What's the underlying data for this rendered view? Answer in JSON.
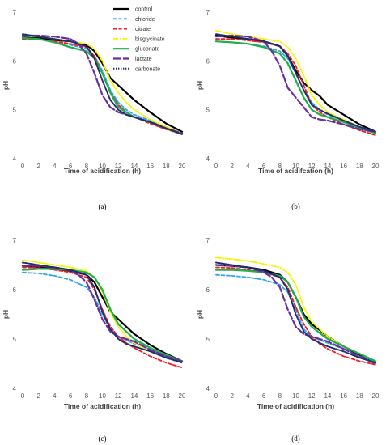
{
  "series_styles": {
    "control": {
      "color": "#000000",
      "dash": "",
      "width": 2.2
    },
    "chloride": {
      "color": "#2fa6e8",
      "dash": "4,2.5",
      "width": 1.8
    },
    "citrate": {
      "color": "#ee1c24",
      "dash": "4,2.5",
      "width": 1.8
    },
    "bisglycinate": {
      "color": "#f5f500",
      "dash": "6,2,1.5,2",
      "width": 1.8
    },
    "gluconate": {
      "color": "#1fae4a",
      "dash": "",
      "width": 2.2
    },
    "lactate": {
      "color": "#6b2fa0",
      "dash": "9,3",
      "width": 2.2
    },
    "carbonate": {
      "color": "#1f2f6e",
      "dash": "1.4,1.6",
      "width": 2.0
    }
  },
  "chart_data": [
    {
      "type": "line",
      "panel_label": "(a)",
      "xlabel": "Time of acidification (h)",
      "ylabel": "pH",
      "xlim": [
        0,
        20
      ],
      "ylim": [
        4,
        7
      ],
      "xticks": [
        0,
        2,
        4,
        6,
        8,
        10,
        12,
        14,
        16,
        18,
        20
      ],
      "yticks": [
        4,
        5,
        6,
        7
      ],
      "legend": [
        "control",
        "chloride",
        "citrate",
        "bisglycinate",
        "gluconate",
        "lactate",
        "carbonate"
      ],
      "series": [
        {
          "name": "control",
          "x": [
            0,
            2,
            4,
            6,
            8,
            9,
            10,
            11,
            12,
            13,
            14,
            16,
            18,
            20
          ],
          "y": [
            6.48,
            6.47,
            6.43,
            6.4,
            6.33,
            6.2,
            5.95,
            5.65,
            5.5,
            5.35,
            5.2,
            4.95,
            4.72,
            4.55
          ]
        },
        {
          "name": "chloride",
          "x": [
            0,
            2,
            4,
            6,
            8,
            9,
            10,
            11,
            12,
            13,
            14,
            16,
            18,
            20
          ],
          "y": [
            6.45,
            6.44,
            6.4,
            6.33,
            6.25,
            6.1,
            5.8,
            5.4,
            5.15,
            5.0,
            4.9,
            4.78,
            4.65,
            4.52
          ]
        },
        {
          "name": "citrate",
          "x": [
            0,
            2,
            4,
            6,
            8,
            9,
            10,
            11,
            12,
            13,
            14,
            16,
            18,
            20
          ],
          "y": [
            6.45,
            6.44,
            6.4,
            6.35,
            6.28,
            6.1,
            5.75,
            5.35,
            5.1,
            4.95,
            4.85,
            4.72,
            4.6,
            4.5
          ]
        },
        {
          "name": "bisglycinate",
          "x": [
            0,
            2,
            4,
            6,
            8,
            9,
            10,
            11,
            12,
            13,
            14,
            16,
            18,
            20
          ],
          "y": [
            6.55,
            6.5,
            6.45,
            6.4,
            6.35,
            6.25,
            6.0,
            5.6,
            5.35,
            5.15,
            5.0,
            4.8,
            4.65,
            4.52
          ]
        },
        {
          "name": "gluconate",
          "x": [
            0,
            2,
            4,
            6,
            8,
            9,
            10,
            11,
            12,
            13,
            14,
            16,
            18,
            20
          ],
          "y": [
            6.47,
            6.45,
            6.38,
            6.28,
            6.2,
            6.05,
            5.75,
            5.35,
            5.05,
            4.95,
            4.85,
            4.75,
            4.62,
            4.5
          ]
        },
        {
          "name": "lactate",
          "x": [
            0,
            2,
            4,
            6,
            7,
            8,
            9,
            10,
            11,
            12,
            13,
            14,
            16,
            18,
            20
          ],
          "y": [
            6.52,
            6.52,
            6.5,
            6.45,
            6.35,
            6.15,
            5.75,
            5.3,
            5.05,
            4.95,
            4.9,
            4.85,
            4.75,
            4.62,
            4.52
          ]
        },
        {
          "name": "carbonate",
          "x": [
            0,
            2,
            4,
            6,
            8,
            9,
            10,
            11,
            12,
            13,
            14,
            16,
            18,
            20
          ],
          "y": [
            6.55,
            6.5,
            6.45,
            6.4,
            6.3,
            6.05,
            5.6,
            5.2,
            5.0,
            4.9,
            4.85,
            4.75,
            4.62,
            4.5
          ]
        }
      ]
    },
    {
      "type": "line",
      "panel_label": "(b)",
      "xlabel": "Time of acidifcation (h)",
      "ylabel": "pH",
      "xlim": [
        0,
        20
      ],
      "ylim": [
        4,
        7
      ],
      "xticks": [
        0,
        2,
        4,
        6,
        8,
        10,
        12,
        14,
        16,
        18,
        20
      ],
      "yticks": [
        4,
        5,
        6,
        7
      ],
      "series": [
        {
          "name": "control",
          "x": [
            0,
            2,
            4,
            6,
            8,
            9,
            10,
            11,
            12,
            13,
            14,
            16,
            18,
            20
          ],
          "y": [
            6.52,
            6.48,
            6.45,
            6.4,
            6.3,
            6.1,
            5.8,
            5.55,
            5.4,
            5.28,
            5.1,
            4.9,
            4.7,
            4.55
          ]
        },
        {
          "name": "chloride",
          "x": [
            0,
            2,
            4,
            6,
            8,
            9,
            10,
            11,
            12,
            13,
            14,
            16,
            18,
            20
          ],
          "y": [
            6.4,
            6.38,
            6.35,
            6.3,
            6.2,
            6.05,
            5.75,
            5.4,
            5.15,
            5.0,
            4.9,
            4.78,
            4.65,
            4.55
          ]
        },
        {
          "name": "citrate",
          "x": [
            0,
            2,
            4,
            6,
            8,
            9,
            10,
            11,
            12,
            13,
            14,
            16,
            18,
            20
          ],
          "y": [
            6.45,
            6.45,
            6.42,
            6.38,
            6.3,
            6.15,
            5.9,
            5.5,
            5.1,
            4.95,
            4.85,
            4.7,
            4.58,
            4.48
          ]
        },
        {
          "name": "bisglycinate",
          "x": [
            0,
            2,
            4,
            6,
            8,
            9,
            10,
            11,
            12,
            13,
            14,
            16,
            18,
            20
          ],
          "y": [
            6.62,
            6.55,
            6.5,
            6.45,
            6.4,
            6.28,
            6.05,
            5.7,
            5.3,
            5.1,
            4.95,
            4.8,
            4.65,
            4.55
          ]
        },
        {
          "name": "gluconate",
          "x": [
            0,
            2,
            4,
            6,
            8,
            9,
            10,
            11,
            12,
            13,
            14,
            16,
            18,
            20
          ],
          "y": [
            6.4,
            6.38,
            6.35,
            6.28,
            6.15,
            5.95,
            5.6,
            5.25,
            5.0,
            4.9,
            4.85,
            4.75,
            4.62,
            4.52
          ]
        },
        {
          "name": "lactate",
          "x": [
            0,
            2,
            4,
            6,
            7,
            8,
            9,
            10,
            11,
            12,
            13,
            14,
            16,
            18,
            20
          ],
          "y": [
            6.5,
            6.52,
            6.5,
            6.4,
            6.2,
            5.9,
            5.45,
            5.25,
            5.05,
            4.85,
            4.8,
            4.78,
            4.7,
            4.6,
            4.55
          ]
        },
        {
          "name": "carbonate",
          "x": [
            0,
            2,
            4,
            6,
            8,
            9,
            10,
            11,
            12,
            13,
            14,
            16,
            18,
            20
          ],
          "y": [
            6.55,
            6.5,
            6.45,
            6.4,
            6.3,
            6.1,
            5.75,
            5.4,
            5.1,
            5.0,
            4.92,
            4.78,
            4.65,
            4.55
          ]
        }
      ]
    },
    {
      "type": "line",
      "panel_label": "(c)",
      "xlabel": "Time of acidification (h)",
      "ylabel": "pH",
      "xlim": [
        0,
        20
      ],
      "ylim": [
        4,
        7
      ],
      "xticks": [
        0,
        2,
        4,
        6,
        8,
        10,
        12,
        14,
        16,
        18,
        20
      ],
      "yticks": [
        4,
        5,
        6,
        7
      ],
      "series": [
        {
          "name": "control",
          "x": [
            0,
            2,
            4,
            6,
            8,
            9,
            10,
            11,
            12,
            13,
            14,
            16,
            18,
            20
          ],
          "y": [
            6.48,
            6.46,
            6.42,
            6.38,
            6.3,
            6.15,
            5.85,
            5.55,
            5.4,
            5.25,
            5.1,
            4.88,
            4.7,
            4.55
          ]
        },
        {
          "name": "chloride",
          "x": [
            0,
            2,
            4,
            6,
            8,
            9,
            10,
            11,
            12,
            13,
            14,
            16,
            18,
            20
          ],
          "y": [
            6.35,
            6.33,
            6.28,
            6.2,
            6.05,
            5.85,
            5.5,
            5.2,
            5.05,
            4.98,
            4.9,
            4.78,
            4.65,
            4.52
          ]
        },
        {
          "name": "citrate",
          "x": [
            0,
            2,
            4,
            6,
            8,
            9,
            10,
            11,
            12,
            13,
            14,
            16,
            18,
            20
          ],
          "y": [
            6.45,
            6.44,
            6.4,
            6.35,
            6.25,
            6.0,
            5.6,
            5.25,
            5.05,
            4.92,
            4.82,
            4.65,
            4.52,
            4.42
          ]
        },
        {
          "name": "bisglycinate",
          "x": [
            0,
            2,
            4,
            6,
            8,
            9,
            10,
            11,
            12,
            13,
            14,
            16,
            18,
            20
          ],
          "y": [
            6.6,
            6.55,
            6.5,
            6.45,
            6.38,
            6.25,
            5.95,
            5.55,
            5.25,
            5.05,
            4.92,
            4.75,
            4.62,
            4.52
          ]
        },
        {
          "name": "gluconate",
          "x": [
            0,
            2,
            4,
            6,
            8,
            9,
            10,
            11,
            12,
            13,
            14,
            16,
            18,
            20
          ],
          "y": [
            6.4,
            6.42,
            6.42,
            6.4,
            6.35,
            6.25,
            6.0,
            5.6,
            5.3,
            5.15,
            5.0,
            4.82,
            4.68,
            4.55
          ]
        },
        {
          "name": "lactate",
          "x": [
            0,
            2,
            4,
            6,
            7,
            8,
            9,
            10,
            11,
            12,
            13,
            14,
            16,
            18,
            20
          ],
          "y": [
            6.48,
            6.48,
            6.45,
            6.4,
            6.3,
            6.15,
            5.8,
            5.4,
            5.15,
            5.05,
            5.0,
            4.95,
            4.78,
            4.65,
            4.55
          ]
        },
        {
          "name": "carbonate",
          "x": [
            0,
            2,
            4,
            6,
            8,
            9,
            10,
            11,
            12,
            13,
            14,
            16,
            18,
            20
          ],
          "y": [
            6.55,
            6.5,
            6.45,
            6.4,
            6.3,
            6.05,
            5.55,
            5.2,
            5.0,
            4.9,
            4.85,
            4.75,
            4.62,
            4.52
          ]
        }
      ]
    },
    {
      "type": "line",
      "panel_label": "(d)",
      "xlabel": "Time of acidification (h)",
      "ylabel": "pH",
      "xlim": [
        0,
        20
      ],
      "ylim": [
        4,
        7
      ],
      "xticks": [
        0,
        2,
        4,
        6,
        8,
        10,
        12,
        14,
        16,
        18,
        20
      ],
      "yticks": [
        4,
        5,
        6,
        7
      ],
      "series": [
        {
          "name": "control",
          "x": [
            0,
            2,
            4,
            6,
            8,
            9,
            10,
            11,
            12,
            13,
            14,
            16,
            18,
            20
          ],
          "y": [
            6.5,
            6.48,
            6.45,
            6.4,
            6.3,
            6.15,
            5.85,
            5.5,
            5.3,
            5.18,
            5.05,
            4.85,
            4.68,
            4.52
          ]
        },
        {
          "name": "chloride",
          "x": [
            0,
            2,
            4,
            6,
            8,
            9,
            10,
            11,
            12,
            13,
            14,
            16,
            18,
            20
          ],
          "y": [
            6.3,
            6.28,
            6.25,
            6.2,
            6.1,
            5.95,
            5.6,
            5.2,
            5.05,
            4.98,
            4.92,
            4.8,
            4.65,
            4.55
          ]
        },
        {
          "name": "citrate",
          "x": [
            0,
            2,
            4,
            6,
            8,
            9,
            10,
            11,
            12,
            13,
            14,
            16,
            18,
            20
          ],
          "y": [
            6.45,
            6.44,
            6.4,
            6.35,
            6.25,
            6.05,
            5.65,
            5.3,
            5.05,
            4.9,
            4.8,
            4.65,
            4.55,
            4.48
          ]
        },
        {
          "name": "bisglycinate",
          "x": [
            0,
            2,
            4,
            6,
            8,
            9,
            10,
            11,
            12,
            13,
            14,
            16,
            18,
            20
          ],
          "y": [
            6.65,
            6.62,
            6.58,
            6.52,
            6.45,
            6.35,
            6.1,
            5.65,
            5.35,
            5.2,
            5.05,
            4.85,
            4.7,
            4.55
          ]
        },
        {
          "name": "gluconate",
          "x": [
            0,
            2,
            4,
            6,
            8,
            9,
            10,
            11,
            12,
            13,
            14,
            16,
            18,
            20
          ],
          "y": [
            6.4,
            6.4,
            6.38,
            6.35,
            6.28,
            6.15,
            5.85,
            5.45,
            5.25,
            5.12,
            5.0,
            4.85,
            4.7,
            4.55
          ]
        },
        {
          "name": "lactate",
          "x": [
            0,
            2,
            4,
            6,
            7,
            8,
            9,
            10,
            11,
            12,
            13,
            14,
            16,
            18,
            20
          ],
          "y": [
            6.5,
            6.48,
            6.45,
            6.35,
            6.25,
            6.05,
            5.6,
            5.25,
            5.1,
            5.05,
            5.0,
            4.95,
            4.8,
            4.65,
            4.5
          ]
        },
        {
          "name": "carbonate",
          "x": [
            0,
            2,
            4,
            6,
            8,
            9,
            10,
            11,
            12,
            13,
            14,
            16,
            18,
            20
          ],
          "y": [
            6.55,
            6.5,
            6.45,
            6.38,
            6.25,
            6.0,
            5.5,
            5.15,
            5.0,
            4.92,
            4.85,
            4.75,
            4.62,
            4.52
          ]
        }
      ]
    }
  ]
}
